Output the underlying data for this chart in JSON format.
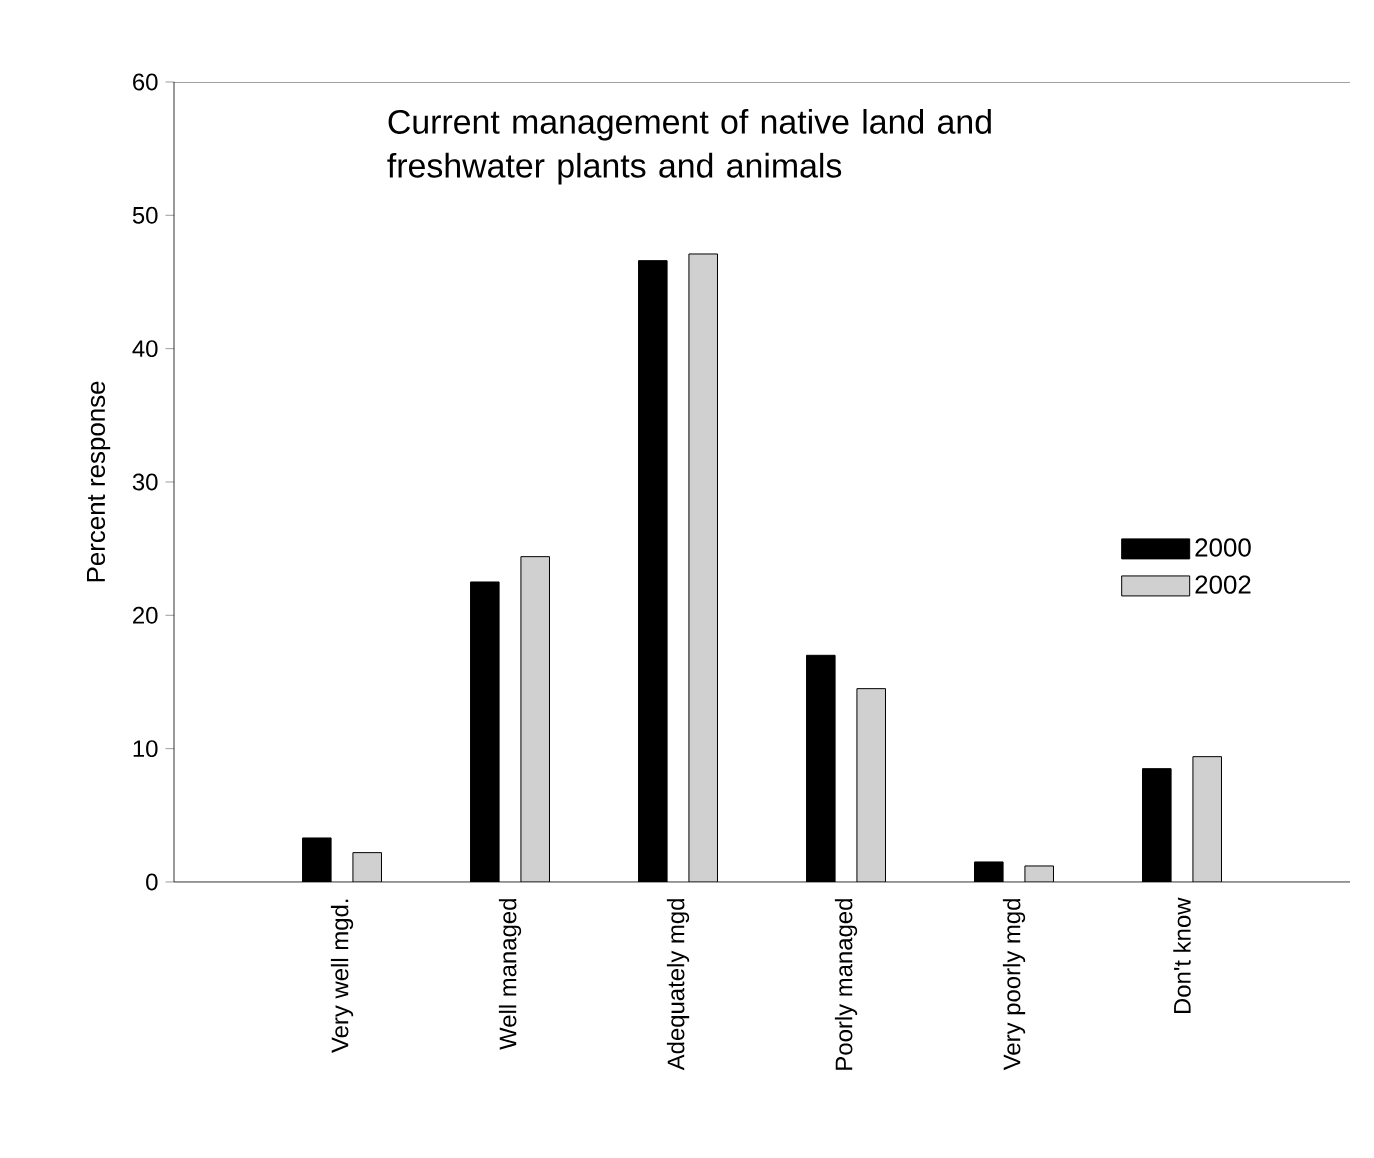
{
  "chart_data": {
    "type": "bar",
    "title": "Current management of native land and freshwater plants and animals",
    "ylabel": "Percent response",
    "categories": [
      "Very well mgd.",
      "Well managed",
      "Adequately mgd",
      "Poorly managed",
      "Very poorly mgd",
      "Don't know"
    ],
    "series": [
      {
        "name": "2000",
        "color": "#000000",
        "values": [
          3.3,
          22.5,
          46.6,
          17.0,
          1.5,
          8.5
        ]
      },
      {
        "name": "2002",
        "color": "#d0d0d0",
        "values": [
          2.2,
          24.4,
          47.1,
          14.5,
          1.2,
          9.4
        ]
      }
    ],
    "ylim": [
      0,
      60
    ],
    "yticks": [
      0,
      10,
      20,
      30,
      40,
      50,
      60
    ],
    "legend": "right",
    "grid": false
  }
}
